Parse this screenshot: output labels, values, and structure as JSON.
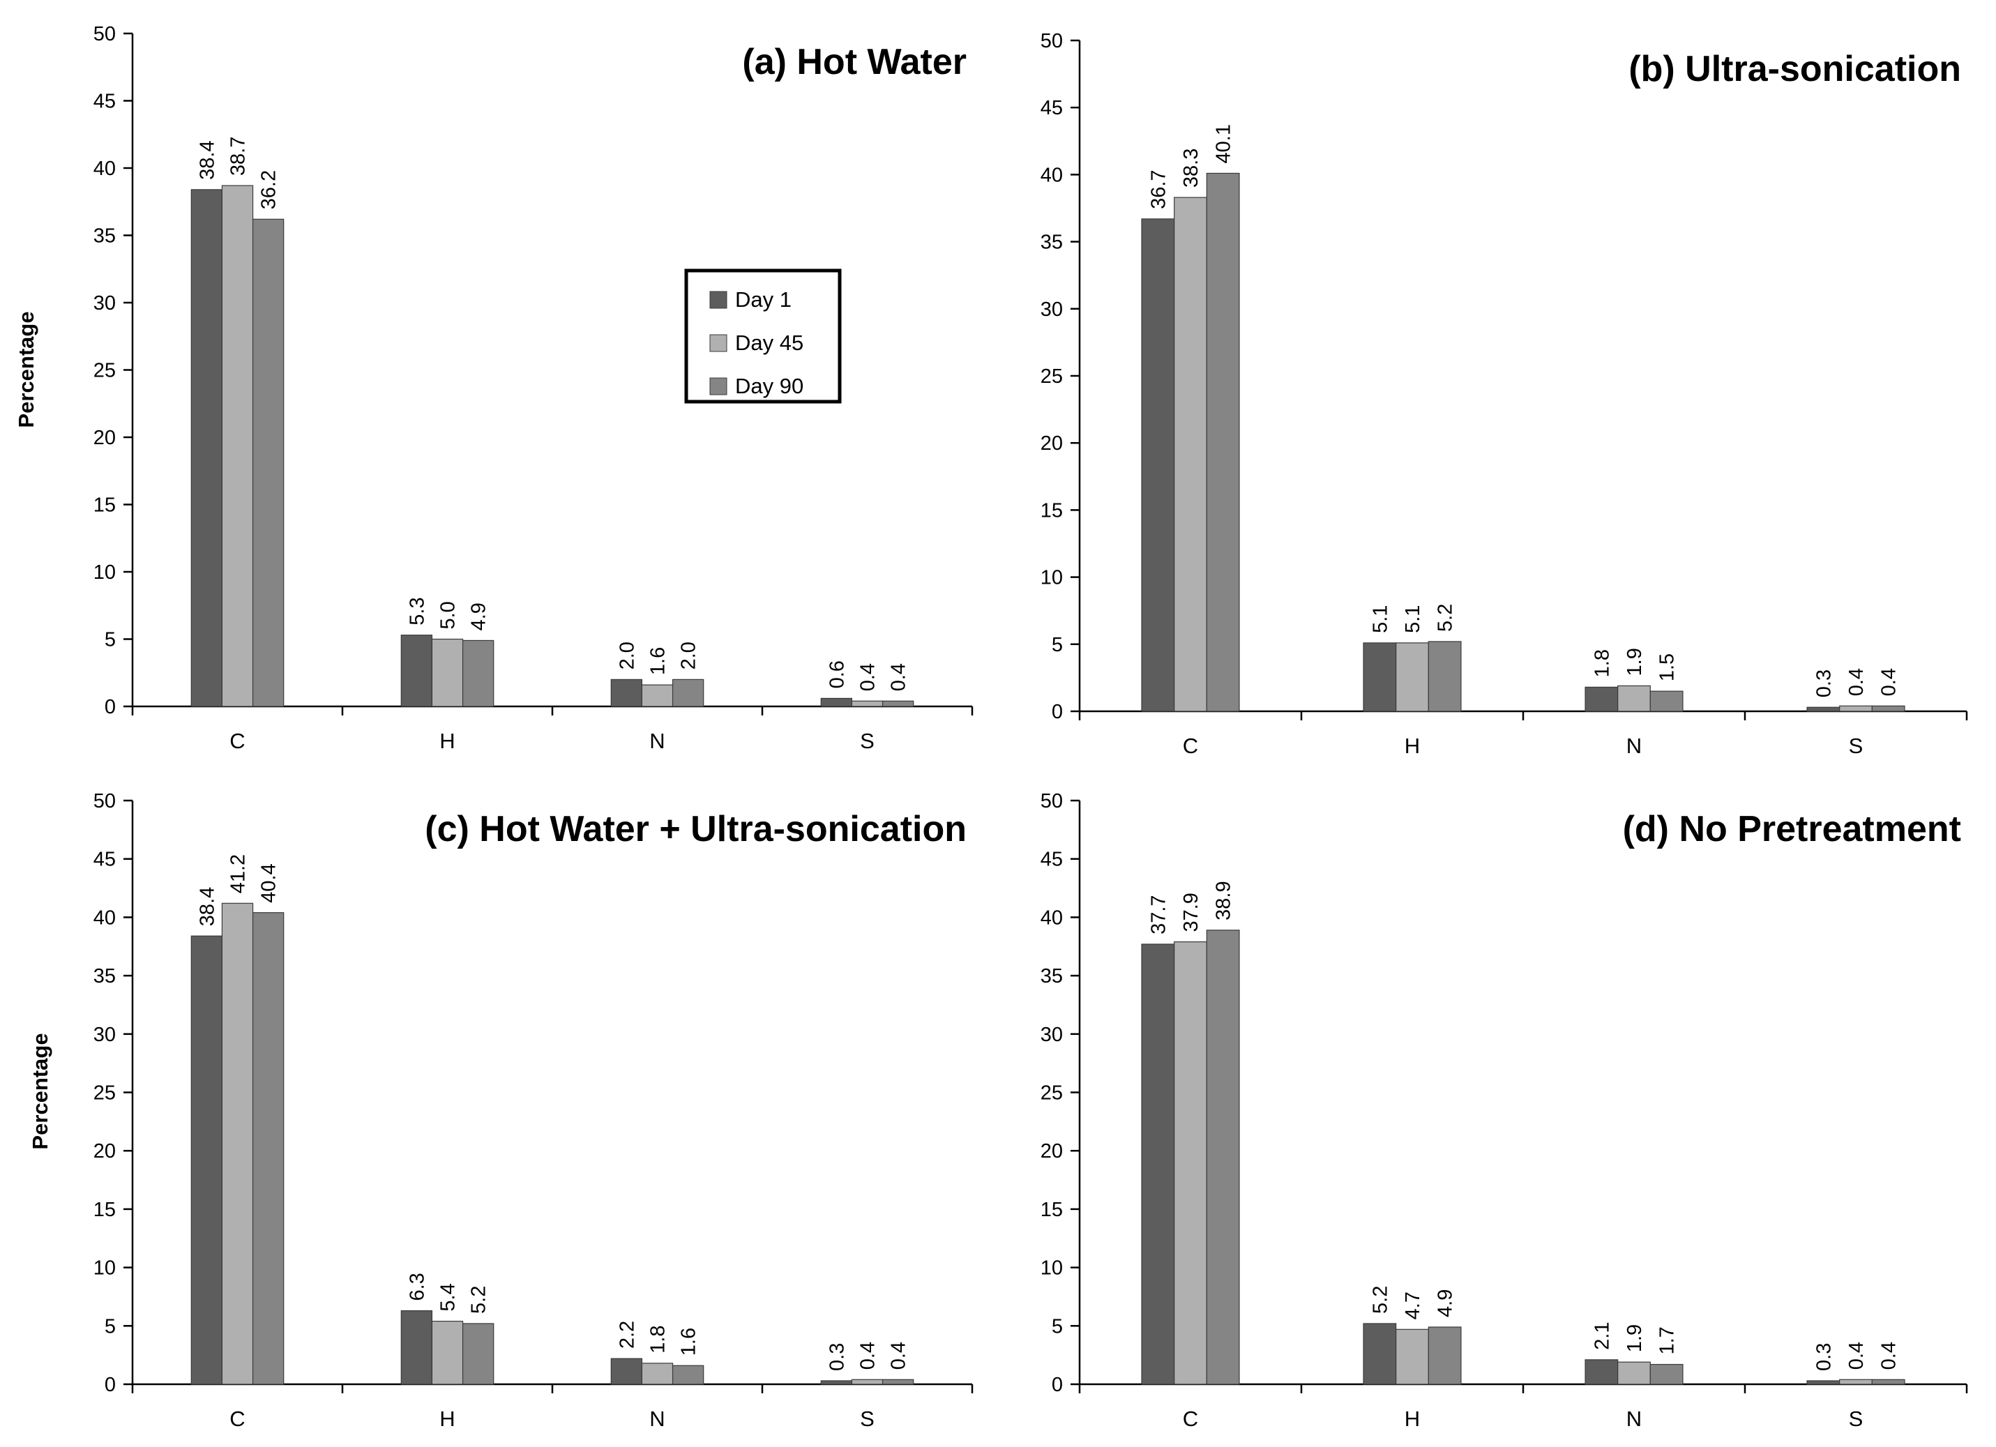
{
  "figure": {
    "ylabel": "Percentage"
  },
  "legend": {
    "entries": [
      {
        "label": "Day 1",
        "color": "#5d5d5d"
      },
      {
        "label": "Day 45",
        "color": "#b0b0b0"
      },
      {
        "label": "Day 90",
        "color": "#858585"
      }
    ]
  },
  "chart_data": [
    {
      "type": "bar",
      "title": "(a) Hot Water",
      "categories": [
        "C",
        "H",
        "N",
        "S"
      ],
      "series": [
        {
          "name": "Day 1",
          "values": [
            38.4,
            5.3,
            2.0,
            0.6
          ],
          "labels": [
            "38.4",
            "5.3",
            "2.0",
            "0.6"
          ]
        },
        {
          "name": "Day 45",
          "values": [
            38.7,
            5.0,
            1.6,
            0.4
          ],
          "labels": [
            "38.7",
            "5.0",
            "1.6",
            "0.4"
          ]
        },
        {
          "name": "Day 90",
          "values": [
            36.2,
            4.9,
            2.0,
            0.4
          ],
          "labels": [
            "36.2",
            "4.9",
            "2.0",
            "0.4"
          ]
        }
      ],
      "ylabel": "Percentage",
      "xlabel": "",
      "ylim": [
        0,
        50
      ],
      "yticks": [
        "0",
        "5",
        "10",
        "15",
        "20",
        "25",
        "30",
        "35",
        "40",
        "45",
        "50"
      ],
      "legend": "center-right"
    },
    {
      "type": "bar",
      "title": "(b) Ultra-sonication",
      "categories": [
        "C",
        "H",
        "N",
        "S"
      ],
      "series": [
        {
          "name": "Day 1",
          "values": [
            36.7,
            5.1,
            1.8,
            0.3
          ],
          "labels": [
            "36.7",
            "5.1",
            "1.8",
            "0.3"
          ]
        },
        {
          "name": "Day 45",
          "values": [
            38.3,
            5.1,
            1.9,
            0.4
          ],
          "labels": [
            "38.3",
            "5.1",
            "1.9",
            "0.4"
          ]
        },
        {
          "name": "Day 90",
          "values": [
            40.1,
            5.2,
            1.5,
            0.4
          ],
          "labels": [
            "40.1",
            "5.2",
            "1.5",
            "0.4"
          ]
        }
      ],
      "ylabel": "",
      "xlabel": "",
      "ylim": [
        0,
        50
      ],
      "yticks": [
        "0",
        "5",
        "10",
        "15",
        "20",
        "25",
        "30",
        "35",
        "40",
        "45",
        "50"
      ]
    },
    {
      "type": "bar",
      "title": "(c) Hot Water + Ultra-sonication",
      "categories": [
        "C",
        "H",
        "N",
        "S"
      ],
      "series": [
        {
          "name": "Day 1",
          "values": [
            38.4,
            6.3,
            2.2,
            0.3
          ],
          "labels": [
            "38.4",
            "6.3",
            "2.2",
            "0.3"
          ]
        },
        {
          "name": "Day 45",
          "values": [
            41.2,
            5.4,
            1.8,
            0.4
          ],
          "labels": [
            "41.2",
            "5.4",
            "1.8",
            "0.4"
          ]
        },
        {
          "name": "Day 90",
          "values": [
            40.4,
            5.2,
            1.6,
            0.4
          ],
          "labels": [
            "40.4",
            "5.2",
            "1.6",
            "0.4"
          ]
        }
      ],
      "ylabel": "Percentage",
      "xlabel": "",
      "ylim": [
        0,
        50
      ],
      "yticks": [
        "0",
        "5",
        "10",
        "15",
        "20",
        "25",
        "30",
        "35",
        "40",
        "45",
        "50"
      ]
    },
    {
      "type": "bar",
      "title": "(d) No Pretreatment",
      "categories": [
        "C",
        "H",
        "N",
        "S"
      ],
      "series": [
        {
          "name": "Day 1",
          "values": [
            37.7,
            5.2,
            2.1,
            0.3
          ],
          "labels": [
            "37.7",
            "5.2",
            "2.1",
            "0.3"
          ]
        },
        {
          "name": "Day 45",
          "values": [
            37.9,
            4.7,
            1.9,
            0.4
          ],
          "labels": [
            "37.9",
            "4.7",
            "1.9",
            "0.4"
          ]
        },
        {
          "name": "Day 90",
          "values": [
            38.9,
            4.9,
            1.7,
            0.4
          ],
          "labels": [
            "38.9",
            "4.9",
            "1.7",
            "0.4"
          ]
        }
      ],
      "ylabel": "",
      "xlabel": "",
      "ylim": [
        0,
        50
      ],
      "yticks": [
        "0",
        "5",
        "10",
        "15",
        "20",
        "25",
        "30",
        "35",
        "40",
        "45",
        "50"
      ]
    }
  ]
}
